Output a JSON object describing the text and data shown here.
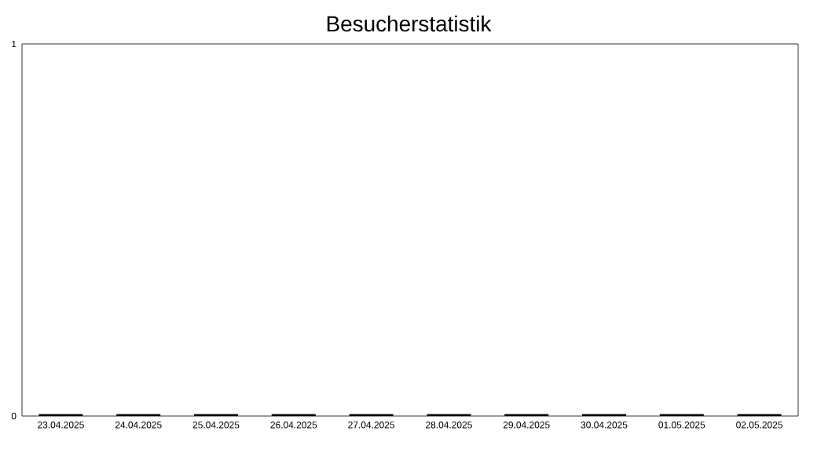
{
  "chart_data": {
    "type": "bar",
    "title": "Besucherstatistik",
    "categories": [
      "23.04.2025",
      "24.04.2025",
      "25.04.2025",
      "26.04.2025",
      "27.04.2025",
      "28.04.2025",
      "29.04.2025",
      "30.04.2025",
      "01.05.2025",
      "02.05.2025"
    ],
    "values": [
      0,
      0,
      0,
      0,
      0,
      0,
      0,
      0,
      0,
      0
    ],
    "color": "#000000",
    "ylim": [
      0,
      1
    ],
    "yticks": [
      0,
      1
    ]
  }
}
